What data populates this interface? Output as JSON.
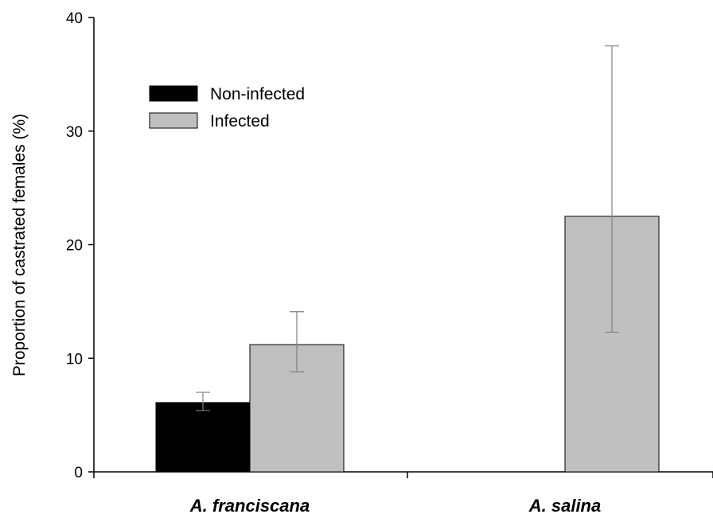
{
  "chart_data": {
    "type": "bar",
    "categories": [
      "A. franciscana",
      "A. salina"
    ],
    "series": [
      {
        "name": "Non-infected",
        "color": "#000000",
        "values": [
          6.1,
          null
        ],
        "error_low": [
          5.4,
          null
        ],
        "error_high": [
          7.0,
          null
        ]
      },
      {
        "name": "Infected",
        "color": "#c0c0c0",
        "values": [
          11.2,
          22.5
        ],
        "error_low": [
          8.8,
          12.3
        ],
        "error_high": [
          14.1,
          37.5
        ]
      }
    ],
    "ylabel": "Proportion of castrated females (%)",
    "xlabel": "",
    "ylim": [
      0,
      40
    ],
    "yticks": [
      0,
      10,
      20,
      30,
      40
    ],
    "legend_position": "top-left",
    "grid": false
  }
}
